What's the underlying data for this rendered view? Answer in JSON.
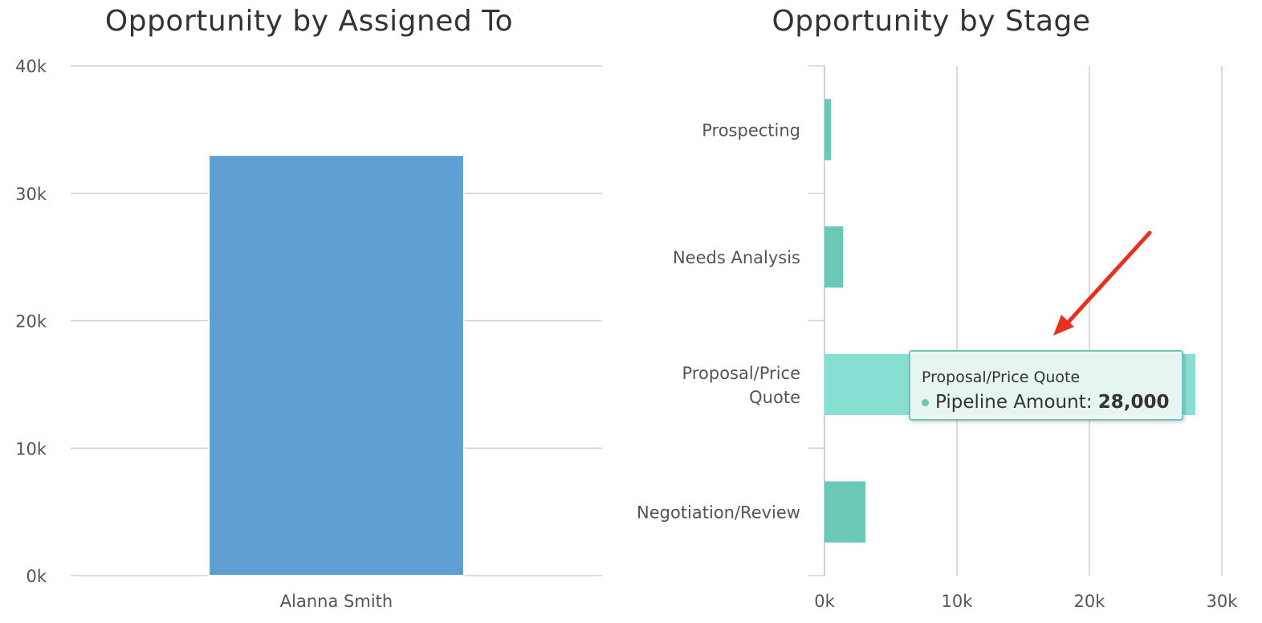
{
  "colors": {
    "bar_assigned": "#5f9ed2",
    "bar_stage": "#6cc8b6",
    "bar_stage_hover": "#86dfd0",
    "grid": "#cfcfcf",
    "axis": "#c8d3e0",
    "annotation_arrow": "#e8301f"
  },
  "chart_data": [
    {
      "type": "bar",
      "title": "Opportunity by Assigned To",
      "categories": [
        "Alanna Smith"
      ],
      "values": [
        33000
      ],
      "ylim": [
        0,
        40000
      ],
      "yticks": [
        0,
        10000,
        20000,
        30000,
        40000
      ],
      "ytick_labels": [
        "0k",
        "10k",
        "20k",
        "30k",
        "40k"
      ],
      "xlabel": "",
      "ylabel": "",
      "grid": true
    },
    {
      "type": "bar",
      "orientation": "horizontal",
      "title": "Opportunity by Stage",
      "categories": [
        "Prospecting",
        "Needs Analysis",
        "Proposal/Price Quote",
        "Negotiation/Review"
      ],
      "values": [
        500,
        1400,
        28000,
        3100
      ],
      "xlim": [
        0,
        30000
      ],
      "xticks": [
        0,
        10000,
        20000,
        30000
      ],
      "xtick_labels": [
        "0k",
        "10k",
        "20k",
        "30k"
      ],
      "grid": true,
      "tooltip": {
        "category": "Proposal/Price Quote",
        "series_label": "Pipeline Amount:",
        "value": "28,000"
      }
    }
  ]
}
